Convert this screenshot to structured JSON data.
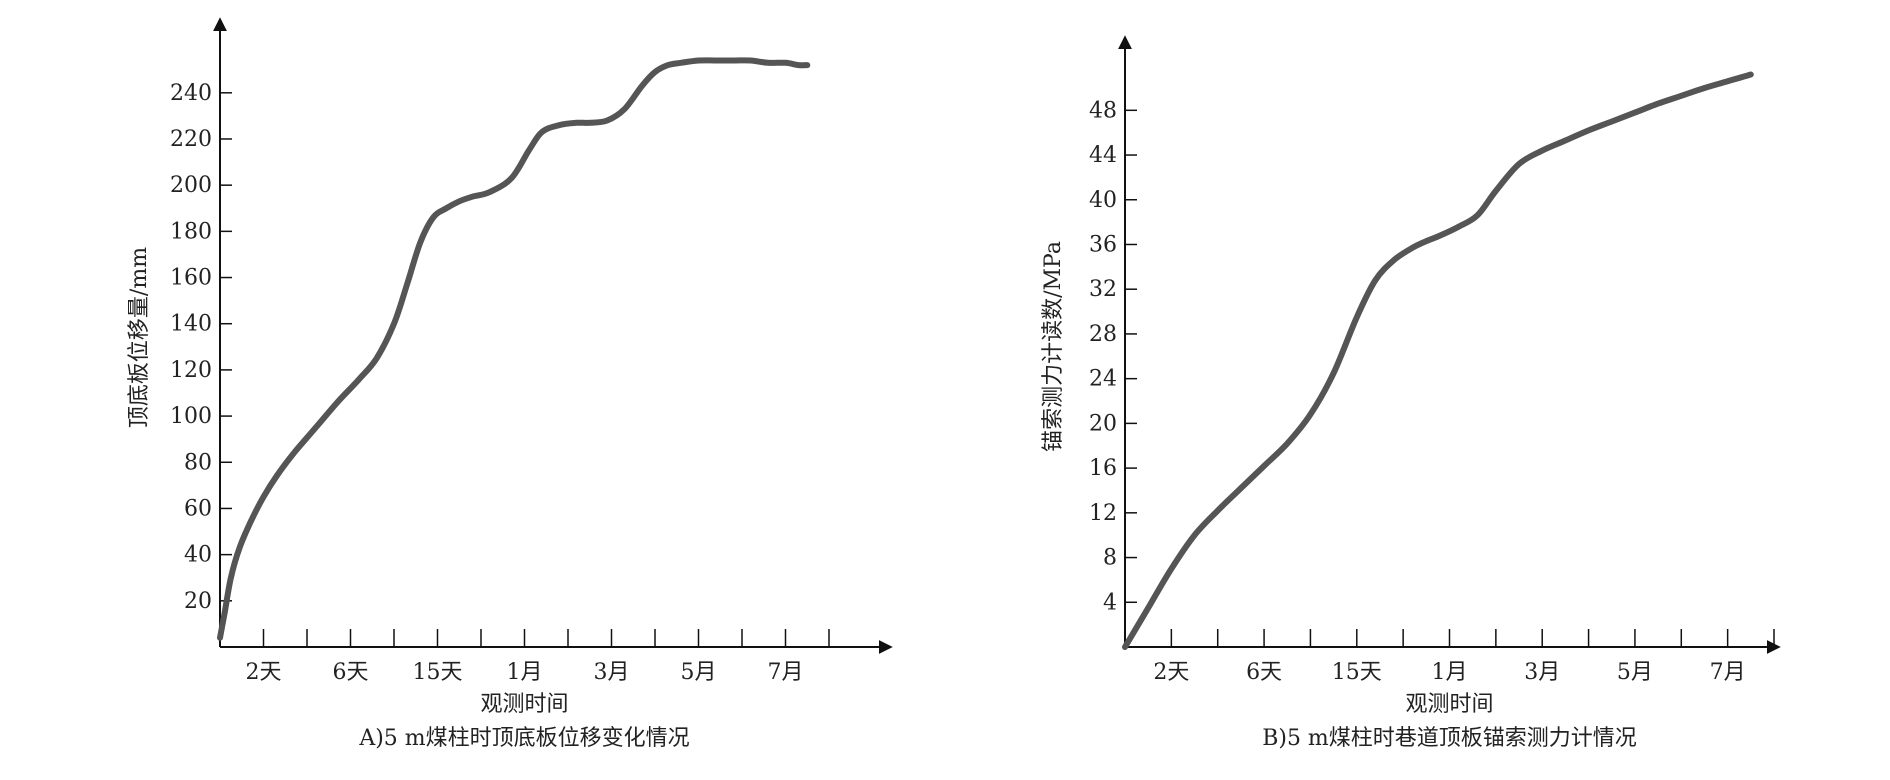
{
  "chart_data": [
    {
      "type": "line",
      "caption": "A)5 m煤柱时顶底板位移变化情况",
      "xlabel": "观测时间",
      "ylabel": "顶底板位移量/mm",
      "categories": [
        "2天",
        "6天",
        "15天",
        "1月",
        "3月",
        "5月",
        "7月"
      ],
      "y_ticks": [
        20,
        40,
        60,
        80,
        100,
        120,
        140,
        160,
        180,
        200,
        220,
        240
      ],
      "ylim": [
        0,
        262
      ],
      "x_range": [
        0,
        14
      ],
      "minor_x_ticks": true,
      "grid": false,
      "line_color": "#555555",
      "series": [
        {
          "x": [
            0,
            0.1,
            0.25,
            0.45,
            0.7,
            1,
            1.3,
            1.7,
            2.2,
            2.7,
            3.2,
            3.6,
            4,
            4.3,
            4.6,
            4.9,
            5.2,
            5.5,
            5.8,
            6.2,
            6.7,
            7.1,
            7.4,
            7.8,
            8.2,
            8.5,
            8.9,
            9.3,
            9.7,
            10,
            10.3,
            10.6,
            11,
            11.4,
            11.8,
            12.2,
            12.6,
            13.0,
            13.3,
            13.5
          ],
          "y": [
            4,
            14,
            30,
            43,
            54,
            65,
            74,
            84,
            95,
            106,
            116,
            125,
            140,
            157,
            175,
            186,
            190,
            193,
            195,
            197,
            203,
            215,
            223,
            226,
            227,
            227,
            228,
            233,
            243,
            249,
            252,
            253,
            254,
            254,
            254,
            254,
            253,
            253,
            252,
            252
          ]
        }
      ]
    },
    {
      "type": "line",
      "caption": "B)5 m煤柱时巷道顶板锚索测力计情况",
      "xlabel": "观测时间",
      "ylabel": "锚索测力计读数/MPa",
      "categories": [
        "2天",
        "6天",
        "15天",
        "1月",
        "3月",
        "5月",
        "7月"
      ],
      "y_ticks": [
        4,
        8,
        12,
        16,
        20,
        24,
        28,
        32,
        36,
        40,
        44,
        48
      ],
      "ylim": [
        0,
        52.5
      ],
      "x_range": [
        0,
        14
      ],
      "minor_x_ticks": true,
      "grid": false,
      "line_color": "#555555",
      "series": [
        {
          "x": [
            0,
            0.5,
            1,
            1.5,
            2,
            2.5,
            3,
            3.5,
            4,
            4.5,
            5,
            5.4,
            5.8,
            6.2,
            6.5,
            6.8,
            7.2,
            7.6,
            8,
            8.5,
            9,
            9.5,
            10,
            10.5,
            11,
            11.5,
            12,
            12.5,
            13,
            13.5
          ],
          "y": [
            0,
            3.5,
            7,
            10,
            12.2,
            14.2,
            16.2,
            18.2,
            20.8,
            24.5,
            29.5,
            32.8,
            34.6,
            35.7,
            36.3,
            36.8,
            37.6,
            38.6,
            40.8,
            43.2,
            44.4,
            45.3,
            46.2,
            47.0,
            47.8,
            48.6,
            49.3,
            50.0,
            50.6,
            51.2
          ]
        }
      ]
    }
  ]
}
